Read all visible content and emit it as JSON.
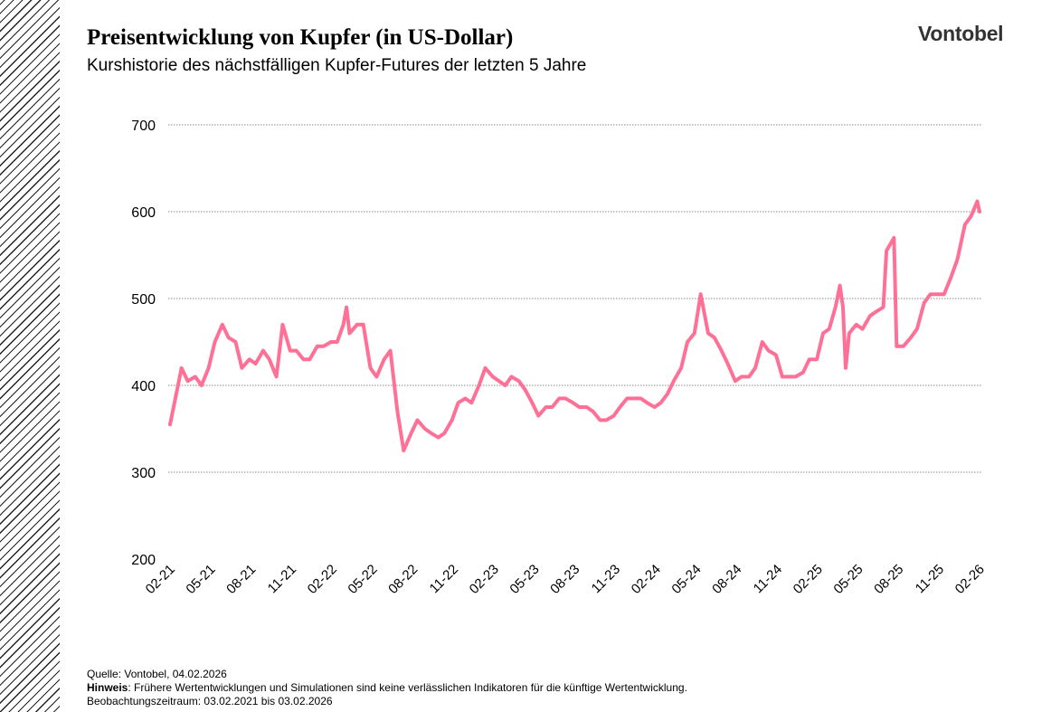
{
  "header": {
    "title": "Preisentwicklung von Kupfer (in US-Dollar)",
    "subtitle": "Kurshistorie des nächstfälligen Kupfer-Futures der letzten 5 Jahre",
    "logo": "Vontobel"
  },
  "footer": {
    "source": "Quelle: Vontobel, 04.02.2026",
    "note_label": "Hinweis",
    "note_text": ": Frühere Wertentwicklungen und Simulationen sind keine verlässlichen Indikatoren für die künftige Wertentwicklung.",
    "period": "Beobachtungszeitraum: 03.02.2021 bis 03.02.2026"
  },
  "chart_data": {
    "type": "line",
    "title": "Preisentwicklung von Kupfer (in US-Dollar)",
    "ylim": [
      200,
      700
    ],
    "yticks": [
      200,
      300,
      400,
      500,
      600,
      700
    ],
    "xlim": [
      "2021-02-03",
      "2026-02-03"
    ],
    "xticks": [
      "02-21",
      "05-21",
      "08-21",
      "11-21",
      "02-22",
      "05-22",
      "08-22",
      "11-22",
      "02-23",
      "05-23",
      "08-23",
      "11-23",
      "02-24",
      "05-24",
      "08-24",
      "11-24",
      "02-25",
      "05-25",
      "08-25",
      "11-25",
      "02-26"
    ],
    "grid": "horizontal-dotted",
    "line_color": "#ff7096",
    "grid_color": "#888888",
    "points": [
      [
        "2021-02-03",
        355
      ],
      [
        "2021-02-15",
        385
      ],
      [
        "2021-03-01",
        420
      ],
      [
        "2021-03-15",
        405
      ],
      [
        "2021-04-01",
        410
      ],
      [
        "2021-04-15",
        400
      ],
      [
        "2021-05-01",
        420
      ],
      [
        "2021-05-15",
        450
      ],
      [
        "2021-06-01",
        470
      ],
      [
        "2021-06-15",
        455
      ],
      [
        "2021-07-01",
        450
      ],
      [
        "2021-07-15",
        420
      ],
      [
        "2021-08-01",
        430
      ],
      [
        "2021-08-15",
        425
      ],
      [
        "2021-09-01",
        440
      ],
      [
        "2021-09-15",
        430
      ],
      [
        "2021-10-01",
        410
      ],
      [
        "2021-10-15",
        470
      ],
      [
        "2021-11-01",
        440
      ],
      [
        "2021-11-15",
        440
      ],
      [
        "2021-12-01",
        430
      ],
      [
        "2021-12-15",
        430
      ],
      [
        "2022-01-01",
        445
      ],
      [
        "2022-01-15",
        445
      ],
      [
        "2022-02-01",
        450
      ],
      [
        "2022-02-15",
        450
      ],
      [
        "2022-03-01",
        470
      ],
      [
        "2022-03-08",
        490
      ],
      [
        "2022-03-15",
        460
      ],
      [
        "2022-04-01",
        470
      ],
      [
        "2022-04-15",
        470
      ],
      [
        "2022-05-01",
        420
      ],
      [
        "2022-05-15",
        410
      ],
      [
        "2022-06-01",
        430
      ],
      [
        "2022-06-15",
        440
      ],
      [
        "2022-07-01",
        370
      ],
      [
        "2022-07-15",
        325
      ],
      [
        "2022-08-01",
        345
      ],
      [
        "2022-08-15",
        360
      ],
      [
        "2022-09-01",
        350
      ],
      [
        "2022-09-15",
        345
      ],
      [
        "2022-10-01",
        340
      ],
      [
        "2022-10-15",
        345
      ],
      [
        "2022-11-01",
        360
      ],
      [
        "2022-11-15",
        380
      ],
      [
        "2022-12-01",
        385
      ],
      [
        "2022-12-15",
        380
      ],
      [
        "2023-01-01",
        400
      ],
      [
        "2023-01-15",
        420
      ],
      [
        "2023-02-01",
        410
      ],
      [
        "2023-02-15",
        405
      ],
      [
        "2023-03-01",
        400
      ],
      [
        "2023-03-15",
        410
      ],
      [
        "2023-04-01",
        405
      ],
      [
        "2023-04-15",
        395
      ],
      [
        "2023-05-01",
        380
      ],
      [
        "2023-05-15",
        365
      ],
      [
        "2023-06-01",
        375
      ],
      [
        "2023-06-15",
        375
      ],
      [
        "2023-07-01",
        385
      ],
      [
        "2023-07-15",
        385
      ],
      [
        "2023-08-01",
        380
      ],
      [
        "2023-08-15",
        375
      ],
      [
        "2023-09-01",
        375
      ],
      [
        "2023-09-15",
        370
      ],
      [
        "2023-10-01",
        360
      ],
      [
        "2023-10-15",
        360
      ],
      [
        "2023-11-01",
        365
      ],
      [
        "2023-11-15",
        375
      ],
      [
        "2023-12-01",
        385
      ],
      [
        "2023-12-15",
        385
      ],
      [
        "2024-01-01",
        385
      ],
      [
        "2024-01-15",
        380
      ],
      [
        "2024-02-01",
        375
      ],
      [
        "2024-02-15",
        380
      ],
      [
        "2024-03-01",
        390
      ],
      [
        "2024-03-15",
        405
      ],
      [
        "2024-04-01",
        420
      ],
      [
        "2024-04-15",
        450
      ],
      [
        "2024-05-01",
        460
      ],
      [
        "2024-05-15",
        505
      ],
      [
        "2024-06-01",
        460
      ],
      [
        "2024-06-15",
        455
      ],
      [
        "2024-07-01",
        440
      ],
      [
        "2024-07-15",
        425
      ],
      [
        "2024-08-01",
        405
      ],
      [
        "2024-08-15",
        410
      ],
      [
        "2024-09-01",
        410
      ],
      [
        "2024-09-15",
        420
      ],
      [
        "2024-10-01",
        450
      ],
      [
        "2024-10-15",
        440
      ],
      [
        "2024-11-01",
        435
      ],
      [
        "2024-11-15",
        410
      ],
      [
        "2024-12-01",
        410
      ],
      [
        "2024-12-15",
        410
      ],
      [
        "2025-01-01",
        415
      ],
      [
        "2025-01-15",
        430
      ],
      [
        "2025-02-01",
        430
      ],
      [
        "2025-02-15",
        460
      ],
      [
        "2025-03-01",
        465
      ],
      [
        "2025-03-15",
        490
      ],
      [
        "2025-03-25",
        515
      ],
      [
        "2025-04-01",
        490
      ],
      [
        "2025-04-07",
        420
      ],
      [
        "2025-04-15",
        460
      ],
      [
        "2025-05-01",
        470
      ],
      [
        "2025-05-15",
        465
      ],
      [
        "2025-06-01",
        480
      ],
      [
        "2025-06-15",
        485
      ],
      [
        "2025-07-01",
        490
      ],
      [
        "2025-07-08",
        555
      ],
      [
        "2025-07-25",
        570
      ],
      [
        "2025-07-31",
        445
      ],
      [
        "2025-08-15",
        445
      ],
      [
        "2025-09-01",
        455
      ],
      [
        "2025-09-15",
        465
      ],
      [
        "2025-10-01",
        495
      ],
      [
        "2025-10-15",
        505
      ],
      [
        "2025-11-01",
        505
      ],
      [
        "2025-11-15",
        505
      ],
      [
        "2025-12-01",
        525
      ],
      [
        "2025-12-15",
        545
      ],
      [
        "2026-01-01",
        585
      ],
      [
        "2026-01-15",
        595
      ],
      [
        "2026-01-29",
        612
      ],
      [
        "2026-02-03",
        600
      ]
    ]
  }
}
